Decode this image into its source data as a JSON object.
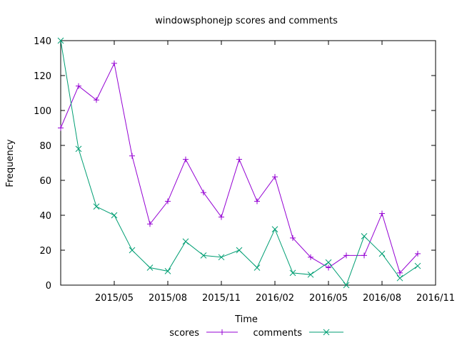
{
  "chart_data": {
    "type": "line",
    "title": "windowsphonejp scores and comments",
    "xlabel": "Time",
    "ylabel": "Frequency",
    "ylim": [
      0,
      140
    ],
    "yticks": [
      0,
      20,
      40,
      60,
      80,
      100,
      120,
      140
    ],
    "xlim": [
      "2015-02",
      "2016-11"
    ],
    "xticks": [
      {
        "value": "2015-05",
        "label": "2015/05"
      },
      {
        "value": "2015-08",
        "label": "2015/08"
      },
      {
        "value": "2015-11",
        "label": "2015/11"
      },
      {
        "value": "2016-02",
        "label": "2016/02"
      },
      {
        "value": "2016-05",
        "label": "2016/05"
      },
      {
        "value": "2016-08",
        "label": "2016/08"
      },
      {
        "value": "2016-11",
        "label": "2016/11"
      }
    ],
    "x": [
      "2015-02",
      "2015-03",
      "2015-04",
      "2015-05",
      "2015-06",
      "2015-07",
      "2015-08",
      "2015-09",
      "2015-10",
      "2015-11",
      "2015-12",
      "2016-01",
      "2016-02",
      "2016-03",
      "2016-04",
      "2016-05",
      "2016-06",
      "2016-07",
      "2016-08",
      "2016-09",
      "2016-10"
    ],
    "series": [
      {
        "name": "scores",
        "color": "#9400d3",
        "marker": "plus",
        "values": [
          90,
          114,
          106,
          127,
          74,
          35,
          48,
          72,
          53,
          39,
          72,
          48,
          62,
          27,
          16,
          10,
          17,
          17,
          41,
          7,
          18
        ]
      },
      {
        "name": "comments",
        "color": "#009e73",
        "marker": "cross",
        "values": [
          140,
          78,
          45,
          40,
          20,
          10,
          8,
          25,
          17,
          16,
          20,
          10,
          32,
          7,
          6,
          13,
          0,
          28,
          18,
          4,
          11
        ]
      }
    ],
    "grid": false,
    "legend": "bottom-center"
  }
}
